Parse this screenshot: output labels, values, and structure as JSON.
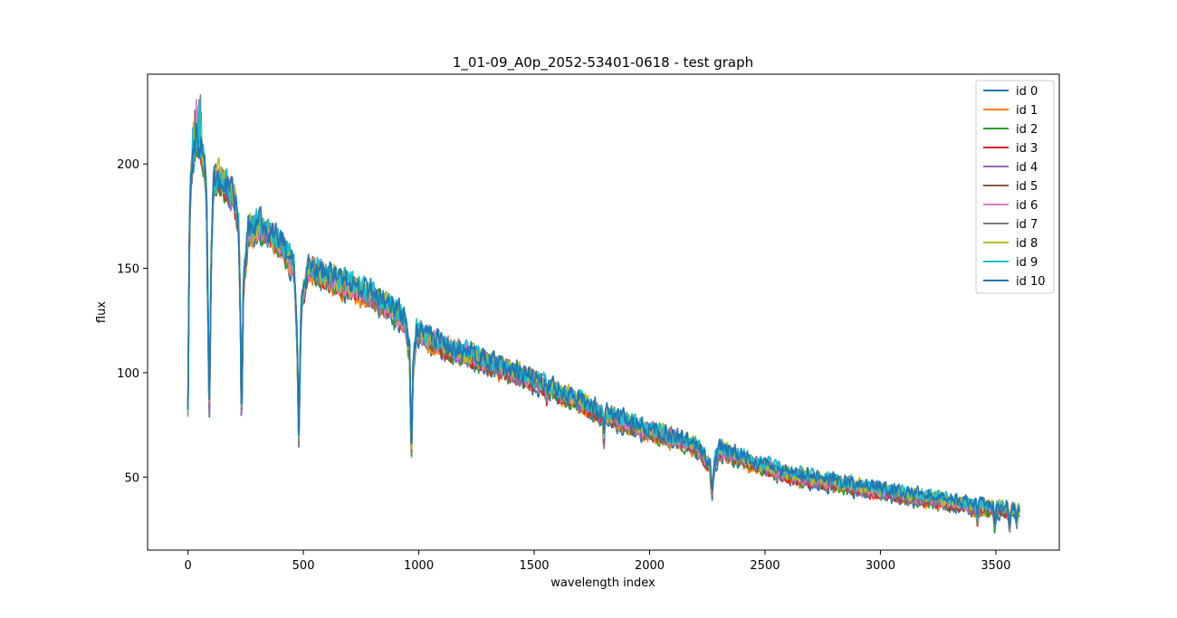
{
  "chart_data": {
    "type": "line",
    "title": "1_01-09_A0p_2052-53401-0618  -  test graph",
    "xlabel": "wavelength index",
    "ylabel": "flux",
    "xlim": [
      -175,
      3775
    ],
    "ylim": [
      15,
      243
    ],
    "xticks": [
      0,
      500,
      1000,
      1500,
      2000,
      2500,
      3000,
      3500
    ],
    "yticks": [
      50,
      100,
      150,
      200
    ],
    "grid": false,
    "legend_position": "top-right",
    "base_profile": {
      "x": [
        0,
        5,
        10,
        20,
        30,
        40,
        50,
        60,
        70,
        80,
        88,
        92,
        100,
        110,
        130,
        150,
        200,
        220,
        228,
        232,
        240,
        260,
        300,
        400,
        460,
        472,
        480,
        490,
        520,
        600,
        800,
        940,
        960,
        968,
        975,
        990,
        1100,
        1500,
        1800,
        2000,
        2200,
        2262,
        2270,
        2280,
        2300,
        2600,
        3000,
        3400,
        3600
      ],
      "y": [
        82,
        150,
        190,
        200,
        207,
        212,
        208,
        205,
        202,
        185,
        120,
        74,
        150,
        190,
        193,
        192,
        183,
        170,
        120,
        72,
        140,
        168,
        170,
        163,
        150,
        120,
        66,
        130,
        150,
        146,
        137,
        125,
        110,
        58,
        100,
        120,
        113,
        96,
        80,
        72,
        65,
        55,
        40,
        55,
        63,
        51,
        43,
        36,
        34
      ]
    },
    "dips": [
      {
        "x": 1802,
        "depth": 12
      },
      {
        "x": 1555,
        "depth": 5
      },
      {
        "x": 3420,
        "depth": 6
      },
      {
        "x": 3495,
        "depth": 8
      },
      {
        "x": 3560,
        "depth": 9
      },
      {
        "x": 3590,
        "depth": 7
      }
    ],
    "series": [
      {
        "name": "id 0",
        "color": "#1f77b4"
      },
      {
        "name": "id 1",
        "color": "#ff7f0e"
      },
      {
        "name": "id 2",
        "color": "#2ca02c"
      },
      {
        "name": "id 3",
        "color": "#d62728"
      },
      {
        "name": "id 4",
        "color": "#9467bd"
      },
      {
        "name": "id 5",
        "color": "#8c564b"
      },
      {
        "name": "id 6",
        "color": "#e377c2"
      },
      {
        "name": "id 7",
        "color": "#7f7f7f"
      },
      {
        "name": "id 8",
        "color": "#bcbd22"
      },
      {
        "name": "id 9",
        "color": "#17becf"
      },
      {
        "name": "id 10",
        "color": "#1f77b4"
      }
    ]
  }
}
